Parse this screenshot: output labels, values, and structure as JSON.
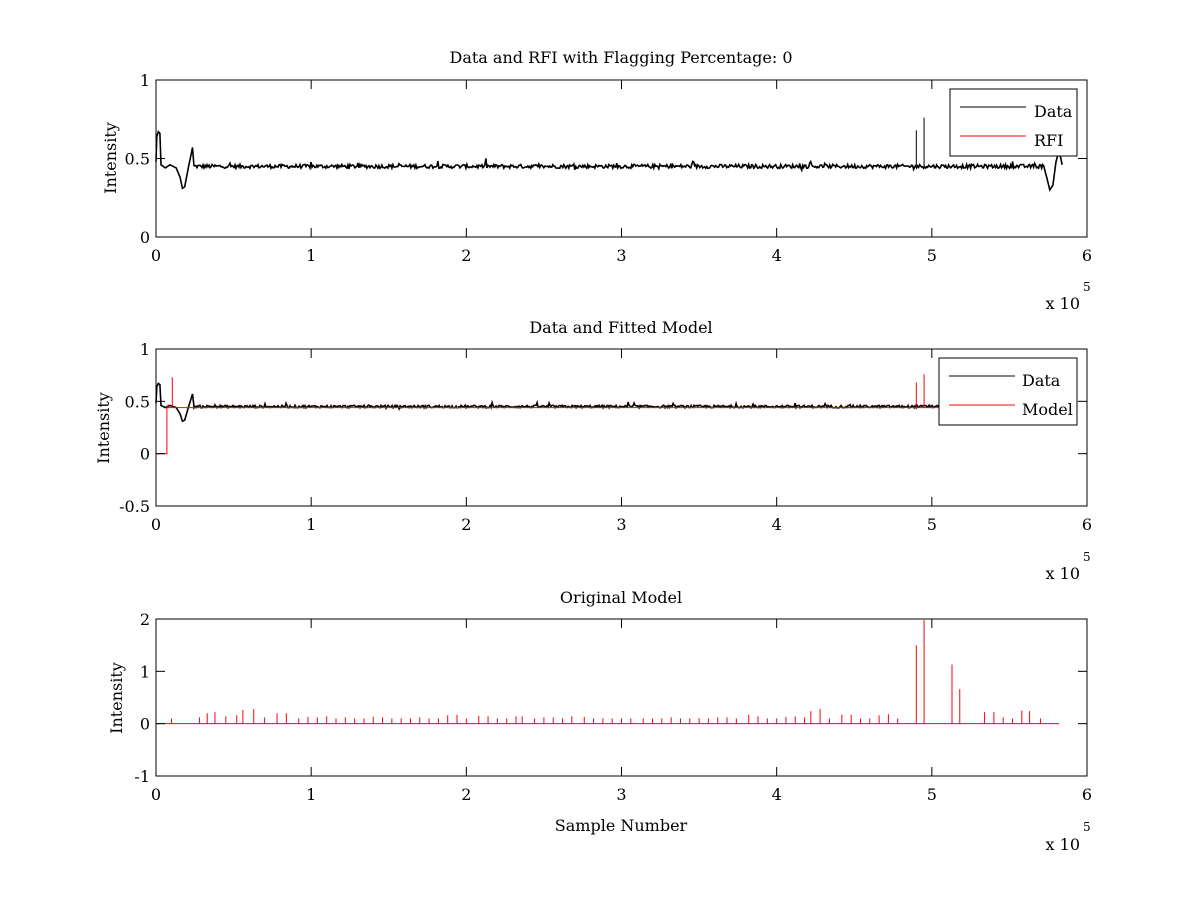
{
  "chart_data": [
    {
      "type": "line",
      "title": "Data and RFI with Flagging Percentage: 0",
      "xlabel": "",
      "ylabel": "Intensity",
      "xlim": [
        0,
        600000
      ],
      "ylim": [
        0,
        1
      ],
      "x_ticks": [
        "0",
        "1",
        "2",
        "3",
        "4",
        "5",
        "6"
      ],
      "y_ticks": [
        "0",
        "0.5",
        "1"
      ],
      "x_multiplier": {
        "base": "x 10",
        "exponent": "5"
      },
      "legend": {
        "placement": "top-right"
      },
      "grid": false,
      "series": [
        {
          "name": "Data",
          "color": "#000000",
          "baseline": 0.45,
          "points": [
            [
              0,
              0.48
            ],
            [
              500,
              0.64
            ],
            [
              1500,
              0.67
            ],
            [
              2500,
              0.66
            ],
            [
              3200,
              0.46
            ],
            [
              6000,
              0.44
            ],
            [
              9000,
              0.46
            ],
            [
              13000,
              0.44
            ],
            [
              15500,
              0.38
            ],
            [
              17000,
              0.31
            ],
            [
              18500,
              0.32
            ],
            [
              21000,
              0.45
            ],
            [
              22500,
              0.52
            ],
            [
              23500,
              0.57
            ],
            [
              24500,
              0.45
            ],
            [
              572000,
              0.45
            ],
            [
              574000,
              0.38
            ],
            [
              576000,
              0.3
            ],
            [
              578000,
              0.33
            ],
            [
              580000,
              0.48
            ],
            [
              582000,
              0.55
            ],
            [
              584000,
              0.46
            ]
          ],
          "spikes": [
            [
              490000,
              0.68
            ],
            [
              495000,
              0.76
            ]
          ]
        },
        {
          "name": "RFI",
          "color": "#ff0000",
          "points": []
        }
      ]
    },
    {
      "type": "line",
      "title": "Data and Fitted Model",
      "xlabel": "",
      "ylabel": "Intensity",
      "xlim": [
        0,
        600000
      ],
      "ylim": [
        -0.5,
        1
      ],
      "x_ticks": [
        "0",
        "1",
        "2",
        "3",
        "4",
        "5",
        "6"
      ],
      "y_ticks": [
        "-0.5",
        "0",
        "0.5",
        "1"
      ],
      "x_multiplier": {
        "base": "x 10",
        "exponent": "5"
      },
      "legend": {
        "placement": "top-right"
      },
      "grid": false,
      "series": [
        {
          "name": "Data",
          "color": "#000000",
          "baseline": 0.45,
          "points": [
            [
              0,
              0.48
            ],
            [
              500,
              0.64
            ],
            [
              1500,
              0.67
            ],
            [
              2500,
              0.66
            ],
            [
              3200,
              0.46
            ],
            [
              6000,
              0.44
            ],
            [
              9000,
              0.46
            ],
            [
              13000,
              0.44
            ],
            [
              15500,
              0.38
            ],
            [
              17000,
              0.31
            ],
            [
              18500,
              0.32
            ],
            [
              21000,
              0.45
            ],
            [
              22500,
              0.52
            ],
            [
              23500,
              0.57
            ],
            [
              24500,
              0.45
            ],
            [
              584000,
              0.45
            ]
          ]
        },
        {
          "name": "Model",
          "color": "#ff0000",
          "baseline": 0.44,
          "points": [
            [
              0,
              0.0
            ],
            [
              7000,
              0.0
            ],
            [
              7000,
              0.44
            ],
            [
              584000,
              0.44
            ]
          ],
          "spikes": [
            [
              7800,
              0.47
            ],
            [
              10500,
              0.73
            ],
            [
              490000,
              0.68
            ],
            [
              495000,
              0.76
            ]
          ]
        }
      ]
    },
    {
      "type": "line",
      "title": "Original Model",
      "xlabel": "Sample Number",
      "ylabel": "Intensity",
      "xlim": [
        0,
        600000
      ],
      "ylim": [
        -1,
        2
      ],
      "x_ticks": [
        "0",
        "1",
        "2",
        "3",
        "4",
        "5",
        "6"
      ],
      "y_ticks": [
        "-1",
        "0",
        "1",
        "2"
      ],
      "x_multiplier": {
        "base": "x 10",
        "exponent": "5"
      },
      "grid": false,
      "series": [
        {
          "color": "#ff0000",
          "baseline": 0.0,
          "x_end": 582000,
          "spikes": [
            [
              10000,
              0.1
            ],
            [
              28000,
              0.12
            ],
            [
              33000,
              0.2
            ],
            [
              38000,
              0.22
            ],
            [
              45000,
              0.14
            ],
            [
              52000,
              0.16
            ],
            [
              56000,
              0.26
            ],
            [
              63000,
              0.28
            ],
            [
              70000,
              0.12
            ],
            [
              78000,
              0.2
            ],
            [
              84000,
              0.2
            ],
            [
              92000,
              0.1
            ],
            [
              98000,
              0.13
            ],
            [
              104000,
              0.12
            ],
            [
              110000,
              0.14
            ],
            [
              116000,
              0.1
            ],
            [
              122000,
              0.12
            ],
            [
              128000,
              0.1
            ],
            [
              134000,
              0.1
            ],
            [
              140000,
              0.13
            ],
            [
              146000,
              0.12
            ],
            [
              152000,
              0.1
            ],
            [
              158000,
              0.1
            ],
            [
              164000,
              0.1
            ],
            [
              170000,
              0.12
            ],
            [
              176000,
              0.1
            ],
            [
              182000,
              0.1
            ],
            [
              188000,
              0.16
            ],
            [
              194000,
              0.17
            ],
            [
              200000,
              0.1
            ],
            [
              208000,
              0.15
            ],
            [
              214000,
              0.14
            ],
            [
              220000,
              0.1
            ],
            [
              226000,
              0.1
            ],
            [
              232000,
              0.14
            ],
            [
              236000,
              0.14
            ],
            [
              244000,
              0.1
            ],
            [
              250000,
              0.12
            ],
            [
              256000,
              0.12
            ],
            [
              262000,
              0.1
            ],
            [
              268000,
              0.14
            ],
            [
              276000,
              0.13
            ],
            [
              282000,
              0.1
            ],
            [
              288000,
              0.1
            ],
            [
              294000,
              0.1
            ],
            [
              300000,
              0.1
            ],
            [
              306000,
              0.1
            ],
            [
              314000,
              0.1
            ],
            [
              320000,
              0.1
            ],
            [
              326000,
              0.1
            ],
            [
              332000,
              0.12
            ],
            [
              338000,
              0.1
            ],
            [
              344000,
              0.1
            ],
            [
              350000,
              0.1
            ],
            [
              356000,
              0.1
            ],
            [
              362000,
              0.12
            ],
            [
              368000,
              0.12
            ],
            [
              374000,
              0.1
            ],
            [
              382000,
              0.17
            ],
            [
              388000,
              0.14
            ],
            [
              394000,
              0.1
            ],
            [
              400000,
              0.1
            ],
            [
              406000,
              0.13
            ],
            [
              412000,
              0.14
            ],
            [
              418000,
              0.12
            ],
            [
              422000,
              0.24
            ],
            [
              428000,
              0.28
            ],
            [
              434000,
              0.1
            ],
            [
              442000,
              0.17
            ],
            [
              448000,
              0.17
            ],
            [
              454000,
              0.1
            ],
            [
              460000,
              0.1
            ],
            [
              466000,
              0.16
            ],
            [
              472000,
              0.18
            ],
            [
              478000,
              0.1
            ],
            [
              490000,
              1.5
            ],
            [
              495000,
              1.98
            ],
            [
              513000,
              1.13
            ],
            [
              518000,
              0.66
            ],
            [
              534000,
              0.22
            ],
            [
              540000,
              0.22
            ],
            [
              546000,
              0.12
            ],
            [
              552000,
              0.1
            ],
            [
              558000,
              0.25
            ],
            [
              563000,
              0.24
            ],
            [
              570000,
              0.1
            ]
          ]
        }
      ]
    }
  ]
}
